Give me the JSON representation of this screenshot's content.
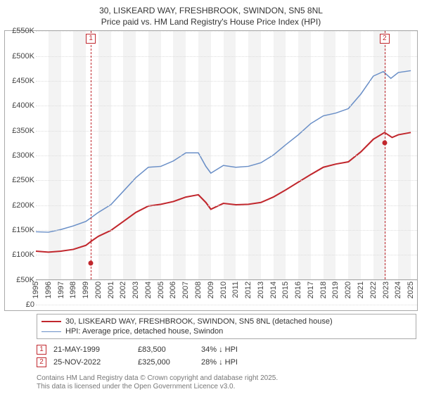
{
  "title_line1": "30, LISKEARD WAY, FRESHBROOK, SWINDON, SN5 8NL",
  "title_line2": "Price paid vs. HM Land Registry's House Price Index (HPI)",
  "chart": {
    "type": "line",
    "background_color": "#ffffff",
    "grid_color": "#dddddd",
    "border_color": "#aaaaaa",
    "x_years": [
      1995,
      1996,
      1997,
      1998,
      1999,
      2000,
      2001,
      2002,
      2003,
      2004,
      2005,
      2006,
      2007,
      2008,
      2009,
      2010,
      2011,
      2012,
      2013,
      2014,
      2015,
      2016,
      2017,
      2018,
      2019,
      2020,
      2021,
      2022,
      2023,
      2024,
      2025
    ],
    "xlim": [
      1995,
      2025.5
    ],
    "ylim": [
      0,
      550
    ],
    "ytick_step": 50,
    "yticks": [
      "£0",
      "£50K",
      "£100K",
      "£150K",
      "£200K",
      "£250K",
      "£300K",
      "£350K",
      "£400K",
      "£450K",
      "£500K",
      "£550K"
    ],
    "label_fontsize": 11,
    "band_color": "#f3f3f3",
    "vline_color": "#bc4a47",
    "series_red": {
      "label": "30, LISKEARD WAY, FRESHBROOK, SWINDON, SN5 8NL (detached house)",
      "color": "#c1272d",
      "line_width": 2.2,
      "points": [
        [
          1995,
          62
        ],
        [
          1996,
          60
        ],
        [
          1997,
          62
        ],
        [
          1998,
          66
        ],
        [
          1999,
          75
        ],
        [
          1999.4,
          83.5
        ],
        [
          2000,
          95
        ],
        [
          2001,
          108
        ],
        [
          2002,
          128
        ],
        [
          2003,
          148
        ],
        [
          2004,
          162
        ],
        [
          2005,
          166
        ],
        [
          2006,
          172
        ],
        [
          2007,
          182
        ],
        [
          2008,
          187
        ],
        [
          2008.6,
          170
        ],
        [
          2009,
          155
        ],
        [
          2010,
          168
        ],
        [
          2011,
          165
        ],
        [
          2012,
          166
        ],
        [
          2013,
          170
        ],
        [
          2014,
          182
        ],
        [
          2015,
          198
        ],
        [
          2016,
          215
        ],
        [
          2017,
          232
        ],
        [
          2018,
          248
        ],
        [
          2019,
          255
        ],
        [
          2020,
          260
        ],
        [
          2021,
          282
        ],
        [
          2022,
          310
        ],
        [
          2022.9,
          325
        ],
        [
          2023.5,
          314
        ],
        [
          2024,
          320
        ],
        [
          2025,
          325
        ]
      ],
      "sale_dots": [
        [
          1999.4,
          83.5
        ],
        [
          2022.9,
          325
        ]
      ]
    },
    "series_blue": {
      "label": "HPI: Average price, detached house, Swindon",
      "color": "#6a8fc7",
      "line_width": 1.6,
      "points": [
        [
          1995,
          105
        ],
        [
          1996,
          104
        ],
        [
          1997,
          110
        ],
        [
          1998,
          118
        ],
        [
          1999,
          128
        ],
        [
          2000,
          148
        ],
        [
          2001,
          165
        ],
        [
          2002,
          195
        ],
        [
          2003,
          225
        ],
        [
          2004,
          248
        ],
        [
          2005,
          250
        ],
        [
          2006,
          262
        ],
        [
          2007,
          280
        ],
        [
          2008,
          280
        ],
        [
          2008.6,
          250
        ],
        [
          2009,
          235
        ],
        [
          2010,
          252
        ],
        [
          2011,
          248
        ],
        [
          2012,
          250
        ],
        [
          2013,
          258
        ],
        [
          2014,
          275
        ],
        [
          2015,
          298
        ],
        [
          2016,
          320
        ],
        [
          2017,
          345
        ],
        [
          2018,
          362
        ],
        [
          2019,
          368
        ],
        [
          2020,
          378
        ],
        [
          2021,
          410
        ],
        [
          2022,
          450
        ],
        [
          2022.8,
          460
        ],
        [
          2023.4,
          445
        ],
        [
          2024,
          458
        ],
        [
          2025,
          462
        ]
      ]
    },
    "sale_markers": [
      {
        "num": "1",
        "x": 1999.4,
        "color": "#c1272d"
      },
      {
        "num": "2",
        "x": 2022.9,
        "color": "#c1272d"
      }
    ]
  },
  "legend": {
    "border_color": "#aaaaaa"
  },
  "sales": [
    {
      "num": "1",
      "date": "21-MAY-1999",
      "price": "£83,500",
      "delta": "34% ↓ HPI",
      "color": "#c1272d"
    },
    {
      "num": "2",
      "date": "25-NOV-2022",
      "price": "£325,000",
      "delta": "28% ↓ HPI",
      "color": "#c1272d"
    }
  ],
  "copyright_line1": "Contains HM Land Registry data © Crown copyright and database right 2025.",
  "copyright_line2": "This data is licensed under the Open Government Licence v3.0."
}
